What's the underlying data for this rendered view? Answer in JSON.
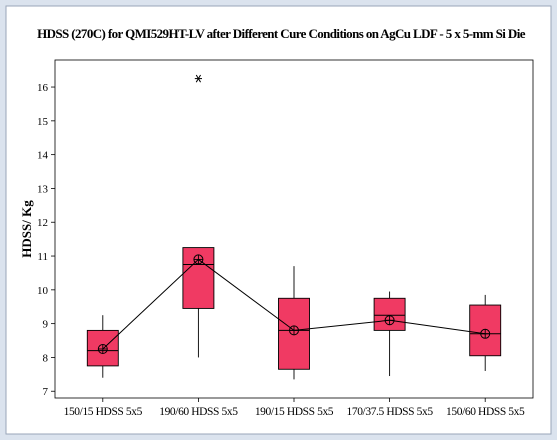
{
  "chart_data": {
    "type": "box",
    "title": "HDSS (270C) for QMI529HT-LV after Different Cure Conditions on AgCu LDF - 5 x 5-mm Si Die",
    "xlabel": "",
    "ylabel": "HDSS/ Kg",
    "ylim": [
      6.8,
      16.8
    ],
    "yticks": [
      7,
      8,
      9,
      10,
      11,
      12,
      13,
      14,
      15,
      16
    ],
    "grid": false,
    "categories": [
      "150/15 HDSS 5x5",
      "190/60 HDSS 5x5",
      "190/15 HDSS 5x5",
      "170/37.5 HDSS 5x5",
      "150/60 HDSS 5x5"
    ],
    "boxes": [
      {
        "whisker_low": 7.4,
        "q1": 7.75,
        "median": 8.2,
        "q3": 8.8,
        "whisker_high": 9.25,
        "mean": 8.25
      },
      {
        "whisker_low": 8.0,
        "q1": 9.45,
        "median": 10.75,
        "q3": 11.25,
        "whisker_high": 11.25,
        "mean": 10.9
      },
      {
        "whisker_low": 7.35,
        "q1": 7.65,
        "median": 8.8,
        "q3": 9.75,
        "whisker_high": 10.7,
        "mean": 8.8
      },
      {
        "whisker_low": 7.45,
        "q1": 8.8,
        "median": 9.25,
        "q3": 9.75,
        "whisker_high": 9.95,
        "mean": 9.1
      },
      {
        "whisker_low": 7.6,
        "q1": 8.05,
        "median": 8.7,
        "q3": 9.55,
        "whisker_high": 9.85,
        "mean": 8.7
      }
    ],
    "outliers": [
      {
        "category_index": 1,
        "value": 16.25
      }
    ],
    "mean_connect_line": true,
    "colors": {
      "box_fill": "#f03a63",
      "frame_bg": "#dbe3ee",
      "plot_bg": "#ffffff",
      "line": "#000000"
    }
  }
}
